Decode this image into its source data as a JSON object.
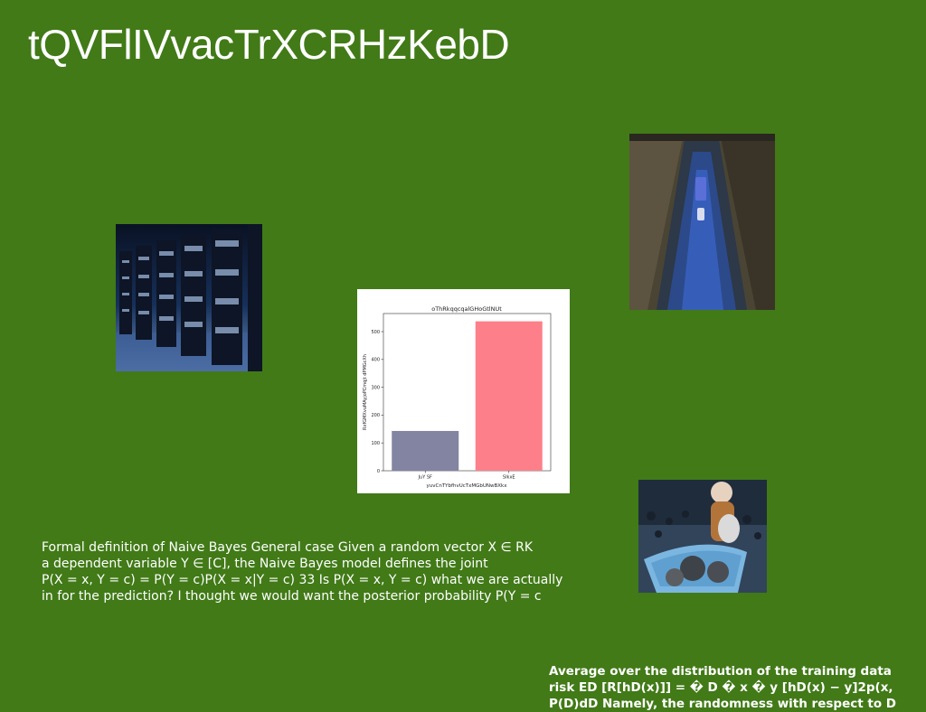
{
  "slide": {
    "title": "tQVFlIVvacTrXCRHzKebD",
    "body_lines": [
      "Formal definition of Naive Bayes General case Given a random vector X ∈ RK",
      "a dependent variable Y ∈ [C], the Naive Bayes model defines the joint",
      "P(X = x, Y = c) = P(Y = c)P(X = x|Y = c) 33 Is P(X = x, Y = c) what we are actually",
      "in for the prediction? I thought we would want the posterior probability P(Y = c"
    ],
    "footer_lines": [
      "Average over the distribution of the training data",
      "risk ED [R[hD(x)]] = � D � x � y [hD(x) − y]2p(x,",
      "P(D)dD Namely, the randomness with respect to D"
    ]
  },
  "images": {
    "library": "library-stacks-photo",
    "tunnel": "glacier-tunnel-photo",
    "child": "child-with-pumpkins-photo"
  },
  "chart_data": {
    "type": "bar",
    "title": "oThRkqqcqalGHoGtlNUt",
    "xlabel": "yuvCnTYbfhvUcTxMGbUNwBXkx",
    "ylabel": "RxfGMXvuMAyjoPCmqjt dPMGcXh",
    "categories": [
      "JuY SF",
      "SIkxE"
    ],
    "values": [
      143,
      537
    ],
    "colors": [
      "#8383a2",
      "#fd7f8a"
    ],
    "yticks": [
      0,
      100,
      200,
      300,
      400,
      500
    ],
    "ylim": [
      0,
      565
    ]
  }
}
